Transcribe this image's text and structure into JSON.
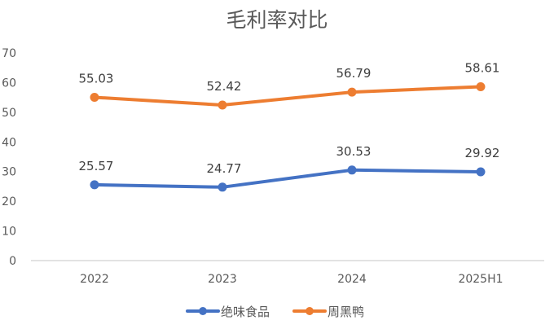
{
  "chart_data": {
    "type": "line",
    "title": "毛利率对比",
    "xlabel": "",
    "ylabel": "",
    "categories": [
      "2022",
      "2023",
      "2024",
      "2025H1"
    ],
    "series": [
      {
        "name": "绝味食品",
        "color": "#4472C4",
        "values": [
          25.57,
          24.77,
          30.53,
          29.92
        ]
      },
      {
        "name": "周黑鸭",
        "color": "#ED7D31",
        "values": [
          55.03,
          52.42,
          56.79,
          58.61
        ]
      }
    ],
    "ylim": [
      0,
      70
    ],
    "yticks": [
      0,
      10,
      20,
      30,
      40,
      50,
      60,
      70
    ],
    "grid": false,
    "data_labels": true,
    "legend_position": "bottom"
  }
}
